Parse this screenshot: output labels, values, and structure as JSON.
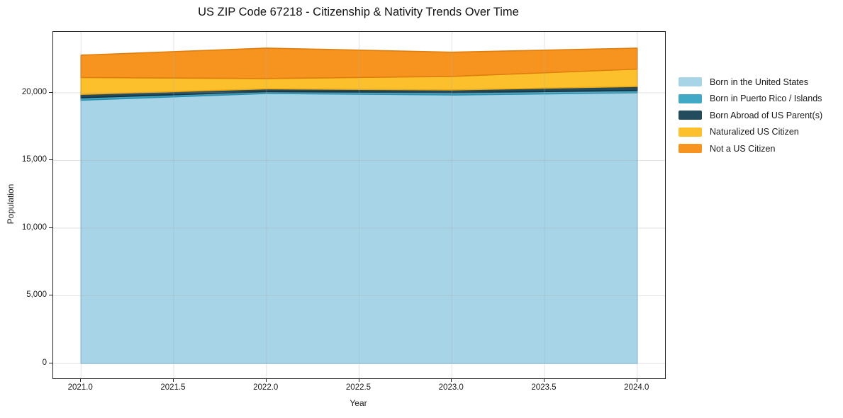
{
  "chart_data": {
    "type": "area",
    "stacked": true,
    "title": "US ZIP Code 67218 - Citizenship & Nativity Trends Over Time",
    "xlabel": "Year",
    "ylabel": "Population",
    "x": [
      2021,
      2022,
      2023,
      2024
    ],
    "series": [
      {
        "name": "Born in the United States",
        "color": "#A8D4E8",
        "edge": "#8CC3DE",
        "values": [
          19450,
          19950,
          19840,
          20000
        ]
      },
      {
        "name": "Born in Puerto Rico / Islands",
        "color": "#41A9C6",
        "edge": "#2E8FAD",
        "values": [
          180,
          130,
          170,
          170
        ]
      },
      {
        "name": "Born Abroad of US Parent(s)",
        "color": "#234B5E",
        "edge": "#16303F",
        "values": [
          250,
          210,
          200,
          300
        ]
      },
      {
        "name": "Naturalized US Citizen",
        "color": "#FCC02C",
        "edge": "#EBA812",
        "values": [
          1250,
          760,
          1000,
          1280
        ]
      },
      {
        "name": "Not a US Citizen",
        "color": "#F79420",
        "edge": "#DE7E0D",
        "values": [
          1650,
          2250,
          1790,
          1550
        ]
      }
    ],
    "stacked_totals": [
      22780,
      23300,
      23000,
      23300
    ],
    "xlim": [
      2020.85,
      2024.15
    ],
    "ylim": [
      -1100,
      24500
    ],
    "xticks": [
      2021.0,
      2021.5,
      2022.0,
      2022.5,
      2023.0,
      2023.5,
      2024.0
    ],
    "xtick_labels": [
      "2021.0",
      "2021.5",
      "2022.0",
      "2022.5",
      "2023.0",
      "2023.5",
      "2024.0"
    ],
    "yticks": [
      0,
      5000,
      10000,
      15000,
      20000
    ],
    "ytick_labels": [
      "0",
      "5,000",
      "10,000",
      "15,000",
      "20,000"
    ],
    "grid": true,
    "grid_color": "rgba(172,172,172,0.35)",
    "legend_position": "right-of-plot"
  }
}
